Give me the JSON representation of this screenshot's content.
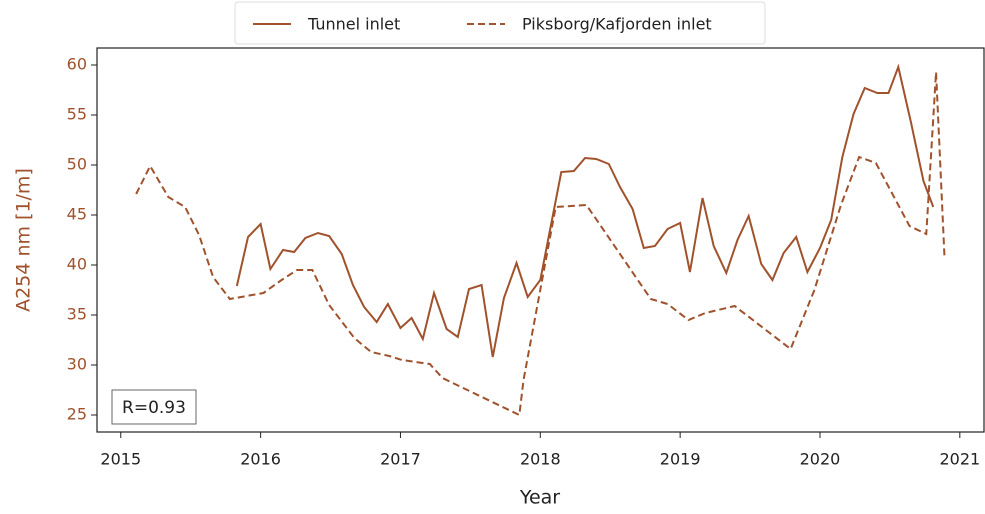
{
  "chart_data": {
    "type": "line",
    "x_label": "Year",
    "y_label": "A254 nm [1/m]",
    "annotation": "R=0.93",
    "legend": "top",
    "axis_color": "#a0522d",
    "xlim": [
      2014.83,
      2021.18
    ],
    "xticks": [
      2015,
      2016,
      2017,
      2018,
      2019,
      2020,
      2021
    ],
    "ylim": [
      23.3,
      61.7
    ],
    "yticks": [
      25,
      30,
      35,
      40,
      45,
      50,
      55,
      60
    ],
    "series": [
      {
        "name": "Tunnel inlet",
        "color": "#a0522d",
        "dash": "solid",
        "x": [
          2015.83,
          2015.91,
          2016.0,
          2016.07,
          2016.16,
          2016.24,
          2016.32,
          2016.41,
          2016.49,
          2016.58,
          2016.66,
          2016.74,
          2016.83,
          2016.91,
          2017.0,
          2017.08,
          2017.16,
          2017.24,
          2017.33,
          2017.41,
          2017.49,
          2017.58,
          2017.66,
          2017.74,
          2017.83,
          2017.91,
          2018.0,
          2018.15,
          2018.24,
          2018.32,
          2018.4,
          2018.49,
          2018.57,
          2018.66,
          2018.74,
          2018.82,
          2018.91,
          2019.0,
          2019.07,
          2019.16,
          2019.24,
          2019.33,
          2019.41,
          2019.49,
          2019.58,
          2019.66,
          2019.74,
          2019.83,
          2019.91,
          2020.0,
          2020.08,
          2020.16,
          2020.24,
          2020.32,
          2020.41,
          2020.49,
          2020.56,
          2020.65,
          2020.74,
          2020.81
        ],
        "values": [
          37.9,
          42.8,
          44.1,
          39.6,
          41.5,
          41.3,
          42.7,
          43.2,
          42.9,
          41.1,
          38.0,
          35.8,
          34.3,
          36.1,
          33.7,
          34.7,
          32.6,
          37.2,
          33.6,
          32.8,
          37.6,
          38.0,
          30.8,
          36.7,
          40.2,
          36.8,
          38.5,
          49.3,
          49.4,
          50.7,
          50.6,
          50.1,
          47.8,
          45.6,
          41.7,
          41.9,
          43.6,
          44.2,
          39.3,
          46.7,
          41.9,
          39.2,
          42.5,
          44.9,
          40.1,
          38.5,
          41.2,
          42.8,
          39.3,
          41.7,
          44.5,
          50.8,
          55.1,
          57.7,
          57.2,
          57.2,
          59.8,
          54.3,
          48.4,
          45.8
        ]
      },
      {
        "name": "Piksborg/Kafjorden inlet",
        "color": "#a0522d",
        "dash": "dashed",
        "x": [
          2015.11,
          2015.21,
          2015.34,
          2015.46,
          2015.56,
          2015.66,
          2015.78,
          2016.02,
          2016.15,
          2016.26,
          2016.37,
          2016.49,
          2016.67,
          2016.79,
          2016.92,
          2017.01,
          2017.21,
          2017.3,
          2017.85,
          2017.88,
          2018.11,
          2018.33,
          2018.57,
          2018.79,
          2018.91,
          2019.06,
          2019.18,
          2019.39,
          2019.79,
          2019.96,
          2020.15,
          2020.28,
          2020.4,
          2020.64,
          2020.76,
          2020.83,
          2020.89
        ],
        "values": [
          47.1,
          49.9,
          46.8,
          45.8,
          43.0,
          38.8,
          36.6,
          37.2,
          38.5,
          39.5,
          39.5,
          36.0,
          32.7,
          31.3,
          30.9,
          30.5,
          30.1,
          28.7,
          25.0,
          28.5,
          45.8,
          46.0,
          41.1,
          36.6,
          36.1,
          34.5,
          35.2,
          35.9,
          31.6,
          37.5,
          46.0,
          50.8,
          50.2,
          43.9,
          43.1,
          59.3,
          40.9
        ]
      }
    ]
  }
}
